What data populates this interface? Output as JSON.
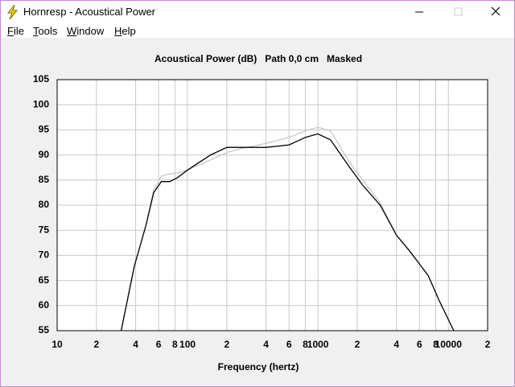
{
  "window": {
    "title": "Hornresp - Acoustical Power",
    "menu": [
      "File",
      "Tools",
      "Window",
      "Help"
    ]
  },
  "chart_data": {
    "type": "line",
    "title": "Acoustical Power (dB)   Path 0,0 cm   Masked",
    "x_label": "Frequency (hertz)",
    "xscale": "log",
    "grid": true,
    "x": [
      31,
      39,
      48,
      55,
      63,
      73,
      84,
      100,
      150,
      200,
      260,
      400,
      600,
      800,
      1000,
      1250,
      1700,
      2200,
      3000,
      4000,
      5000,
      7000,
      8500,
      11000
    ],
    "series": [
      {
        "name": "Masked",
        "color": "#c8c8c8",
        "values": [
          55,
          67.5,
          76,
          83,
          85.8,
          86.2,
          86.4,
          87,
          89,
          90.5,
          91.3,
          92.3,
          93.5,
          94.8,
          95.5,
          94.8,
          89,
          85,
          80.5,
          74,
          71,
          66,
          61,
          55
        ]
      },
      {
        "name": "Path",
        "color": "#000000",
        "values": [
          55,
          67.8,
          76,
          82.5,
          84.7,
          84.7,
          85.5,
          87,
          90,
          91.5,
          91.5,
          91.5,
          92,
          93.5,
          94.2,
          93,
          88,
          84,
          80,
          74,
          71,
          66,
          61,
          55
        ]
      }
    ],
    "xlim": [
      10,
      20000
    ],
    "ylim": [
      55,
      105
    ],
    "xticks": [
      10,
      {
        "value": 20,
        "label": "2"
      },
      {
        "value": 40,
        "label": "4"
      },
      {
        "value": 60,
        "label": "6"
      },
      {
        "value": 80,
        "label": "8"
      },
      100,
      {
        "value": 200,
        "label": "2"
      },
      {
        "value": 400,
        "label": "4"
      },
      {
        "value": 600,
        "label": "6"
      },
      {
        "value": 800,
        "label": "8"
      },
      1000,
      {
        "value": 2000,
        "label": "2"
      },
      {
        "value": 4000,
        "label": "4"
      },
      {
        "value": 6000,
        "label": "6"
      },
      {
        "value": 8000,
        "label": "8"
      },
      10000,
      {
        "value": 20000,
        "label": "2"
      }
    ],
    "yticks": [
      55,
      60,
      65,
      70,
      75,
      80,
      85,
      90,
      95,
      100,
      105
    ]
  }
}
